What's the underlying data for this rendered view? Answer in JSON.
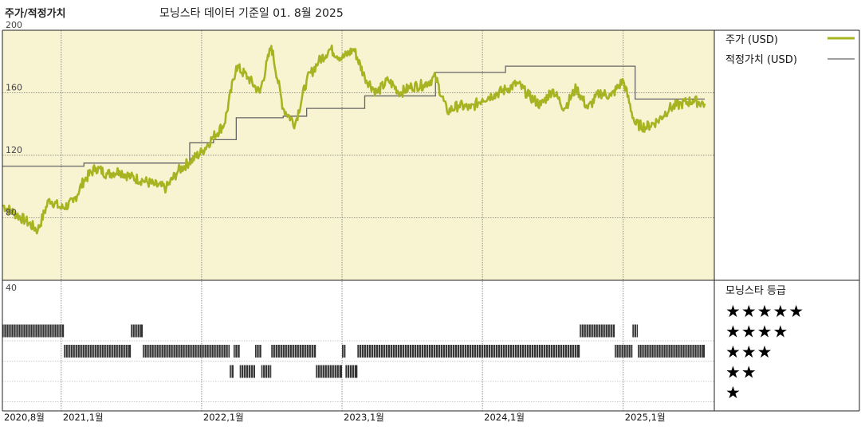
{
  "header": {
    "title": "주가/적정가치",
    "subtitle": "모닝스타 데이터 기준일 01. 8월 2025"
  },
  "legend": {
    "price_label": "주가 (USD)",
    "fair_value_label": "적정가치 (USD)",
    "rating_title": "모닝스타 등급"
  },
  "colors": {
    "price_line": "#a8b322",
    "fair_value_line": "#666666",
    "plot_background": "#f8f3d0",
    "rating_bar": "#333333"
  },
  "chart_data": [
    {
      "type": "line",
      "title": "주가/적정가치",
      "x_range": [
        "2020-08-01",
        "2025-08-01"
      ],
      "y_range": [
        40,
        200
      ],
      "y_ticks": [
        200,
        160,
        120,
        80,
        40
      ],
      "x_ticks": [
        {
          "date": "2020-08-01",
          "label": "2020,8월"
        },
        {
          "date": "2021-01-01",
          "label": "2021,1월"
        },
        {
          "date": "2022-01-01",
          "label": "2022,1월"
        },
        {
          "date": "2023-01-01",
          "label": "2023,1월"
        },
        {
          "date": "2024-01-01",
          "label": "2024,1월"
        },
        {
          "date": "2025-01-01",
          "label": "2025,1월"
        }
      ],
      "series": [
        {
          "name": "주가 (USD)",
          "points": [
            [
              "2020-08-01",
              88
            ],
            [
              "2020-09-01",
              83
            ],
            [
              "2020-10-01",
              78
            ],
            [
              "2020-11-01",
              72
            ],
            [
              "2020-12-01",
              92
            ],
            [
              "2021-01-01",
              86
            ],
            [
              "2021-02-01",
              90
            ],
            [
              "2021-03-01",
              104
            ],
            [
              "2021-04-01",
              112
            ],
            [
              "2021-05-01",
              108
            ],
            [
              "2021-06-01",
              110
            ],
            [
              "2021-07-01",
              106
            ],
            [
              "2021-08-01",
              104
            ],
            [
              "2021-09-01",
              101
            ],
            [
              "2021-10-01",
              99
            ],
            [
              "2021-11-01",
              110
            ],
            [
              "2021-12-01",
              116
            ],
            [
              "2022-01-01",
              122
            ],
            [
              "2022-02-01",
              132
            ],
            [
              "2022-03-01",
              140
            ],
            [
              "2022-04-01",
              177
            ],
            [
              "2022-05-01",
              170
            ],
            [
              "2022-06-01",
              160
            ],
            [
              "2022-07-01",
              190
            ],
            [
              "2022-08-01",
              150
            ],
            [
              "2022-09-01",
              140
            ],
            [
              "2022-10-01",
              168
            ],
            [
              "2022-11-01",
              180
            ],
            [
              "2022-12-01",
              188
            ],
            [
              "2023-01-01",
              182
            ],
            [
              "2023-02-01",
              188
            ],
            [
              "2023-03-01",
              170
            ],
            [
              "2023-04-01",
              160
            ],
            [
              "2023-05-01",
              168
            ],
            [
              "2023-06-01",
              160
            ],
            [
              "2023-07-01",
              164
            ],
            [
              "2023-08-01",
              165
            ],
            [
              "2023-09-01",
              170
            ],
            [
              "2023-10-01",
              148
            ],
            [
              "2023-11-01",
              152
            ],
            [
              "2023-12-01",
              150
            ],
            [
              "2024-01-01",
              156
            ],
            [
              "2024-02-01",
              159
            ],
            [
              "2024-03-01",
              162
            ],
            [
              "2024-04-01",
              166
            ],
            [
              "2024-05-01",
              158
            ],
            [
              "2024-06-01",
              152
            ],
            [
              "2024-07-01",
              162
            ],
            [
              "2024-08-01",
              150
            ],
            [
              "2024-09-01",
              163
            ],
            [
              "2024-10-01",
              150
            ],
            [
              "2024-11-01",
              160
            ],
            [
              "2024-12-01",
              158
            ],
            [
              "2025-01-01",
              168
            ],
            [
              "2025-02-01",
              140
            ],
            [
              "2025-03-01",
              138
            ],
            [
              "2025-04-01",
              142
            ],
            [
              "2025-05-01",
              150
            ],
            [
              "2025-06-01",
              153
            ],
            [
              "2025-07-01",
              155
            ],
            [
              "2025-08-01",
              153
            ]
          ]
        },
        {
          "name": "적정가치 (USD)",
          "steps": [
            [
              "2020-08-01",
              113
            ],
            [
              "2021-03-01",
              115
            ],
            [
              "2021-12-01",
              128
            ],
            [
              "2022-02-01",
              130
            ],
            [
              "2022-04-01",
              144
            ],
            [
              "2022-08-01",
              145
            ],
            [
              "2022-10-01",
              150
            ],
            [
              "2023-03-01",
              158
            ],
            [
              "2023-09-01",
              173
            ],
            [
              "2024-03-01",
              177
            ],
            [
              "2025-02-01",
              156
            ],
            [
              "2025-08-01",
              156
            ]
          ]
        }
      ]
    },
    {
      "type": "bar",
      "title": "모닝스타 등급",
      "rating_levels": [
        "★★★★★",
        "★★★★",
        "★★★",
        "★★",
        "★"
      ],
      "periods": [
        {
          "stars": 4,
          "start": "2020-08-01",
          "end": "2021-01-08"
        },
        {
          "stars": 3,
          "start": "2021-01-08",
          "end": "2021-07-01"
        },
        {
          "stars": 4,
          "start": "2021-07-01",
          "end": "2021-08-01"
        },
        {
          "stars": 3,
          "start": "2021-08-01",
          "end": "2022-03-15"
        },
        {
          "stars": 2,
          "start": "2022-03-15",
          "end": "2022-03-25"
        },
        {
          "stars": 3,
          "start": "2022-03-25",
          "end": "2022-04-10"
        },
        {
          "stars": 2,
          "start": "2022-04-10",
          "end": "2022-05-20"
        },
        {
          "stars": 3,
          "start": "2022-05-20",
          "end": "2022-06-05"
        },
        {
          "stars": 2,
          "start": "2022-06-05",
          "end": "2022-07-01"
        },
        {
          "stars": 3,
          "start": "2022-07-01",
          "end": "2022-10-25"
        },
        {
          "stars": 2,
          "start": "2022-10-25",
          "end": "2023-01-01"
        },
        {
          "stars": 3,
          "start": "2023-01-01",
          "end": "2023-01-10"
        },
        {
          "stars": 2,
          "start": "2023-01-10",
          "end": "2023-02-10"
        },
        {
          "stars": 3,
          "start": "2023-02-10",
          "end": "2024-09-10"
        },
        {
          "stars": 4,
          "start": "2024-09-10",
          "end": "2024-12-10"
        },
        {
          "stars": 3,
          "start": "2024-12-10",
          "end": "2025-01-25"
        },
        {
          "stars": 4,
          "start": "2025-01-25",
          "end": "2025-02-08"
        },
        {
          "stars": 3,
          "start": "2025-02-08",
          "end": "2025-08-01"
        }
      ]
    }
  ]
}
